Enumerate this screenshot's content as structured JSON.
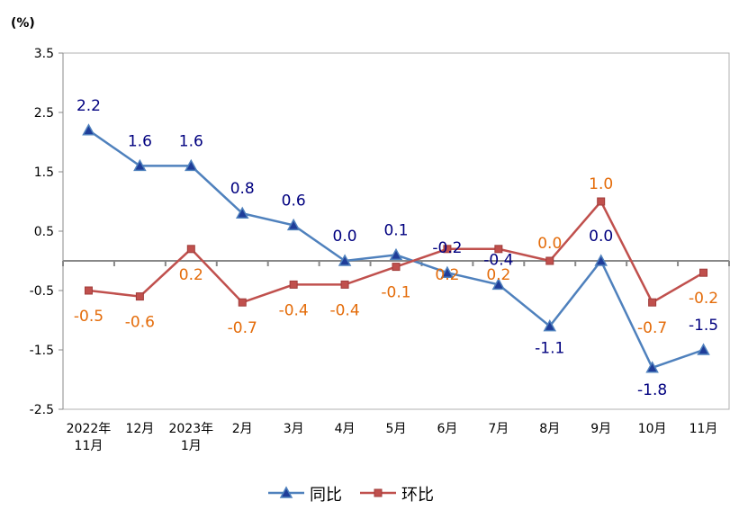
{
  "chart_data": {
    "type": "line",
    "unit_label": "(%)",
    "categories": [
      [
        "2022年",
        "11月"
      ],
      [
        "12月"
      ],
      [
        "2023年",
        "1月"
      ],
      [
        "2月"
      ],
      [
        "3月"
      ],
      [
        "4月"
      ],
      [
        "5月"
      ],
      [
        "6月"
      ],
      [
        "7月"
      ],
      [
        "8月"
      ],
      [
        "9月"
      ],
      [
        "10月"
      ],
      [
        "11月"
      ]
    ],
    "ylim": [
      -2.5,
      3.5
    ],
    "yticks": [
      "3.5",
      "2.5",
      "1.5",
      "0.5",
      "-0.5",
      "-1.5",
      "-2.5"
    ],
    "grid": false,
    "legend_position": "bottom",
    "series": [
      {
        "name": "同比",
        "color": "#4f81bd",
        "marker": "triangle",
        "marker_color": "#1f3d99",
        "label_color": "#00007f",
        "values": [
          2.2,
          1.6,
          1.6,
          0.8,
          0.6,
          0.0,
          0.1,
          -0.2,
          -0.4,
          -1.1,
          0.0,
          -1.8,
          -1.5
        ],
        "labels": [
          "2.2",
          "1.6",
          "1.6",
          "0.8",
          "0.6",
          "0.0",
          "0.1",
          "-0.2",
          "-0.4",
          "-1.1",
          "0.0",
          "-1.8",
          "-1.5"
        ]
      },
      {
        "name": "环比",
        "color": "#c0504d",
        "marker": "square",
        "marker_color": "#c0504d",
        "label_color": "#e46c0a",
        "values": [
          -0.5,
          -0.6,
          0.2,
          -0.7,
          -0.4,
          -0.4,
          -0.1,
          0.2,
          0.2,
          0.0,
          1.0,
          -0.7,
          -0.2
        ],
        "labels": [
          "-0.5",
          "-0.6",
          "0.2",
          "-0.7",
          "-0.4",
          "-0.4",
          "-0.1",
          "0.2",
          "0.2",
          "0.0",
          "1.0",
          "-0.7",
          "-0.2"
        ]
      }
    ]
  }
}
